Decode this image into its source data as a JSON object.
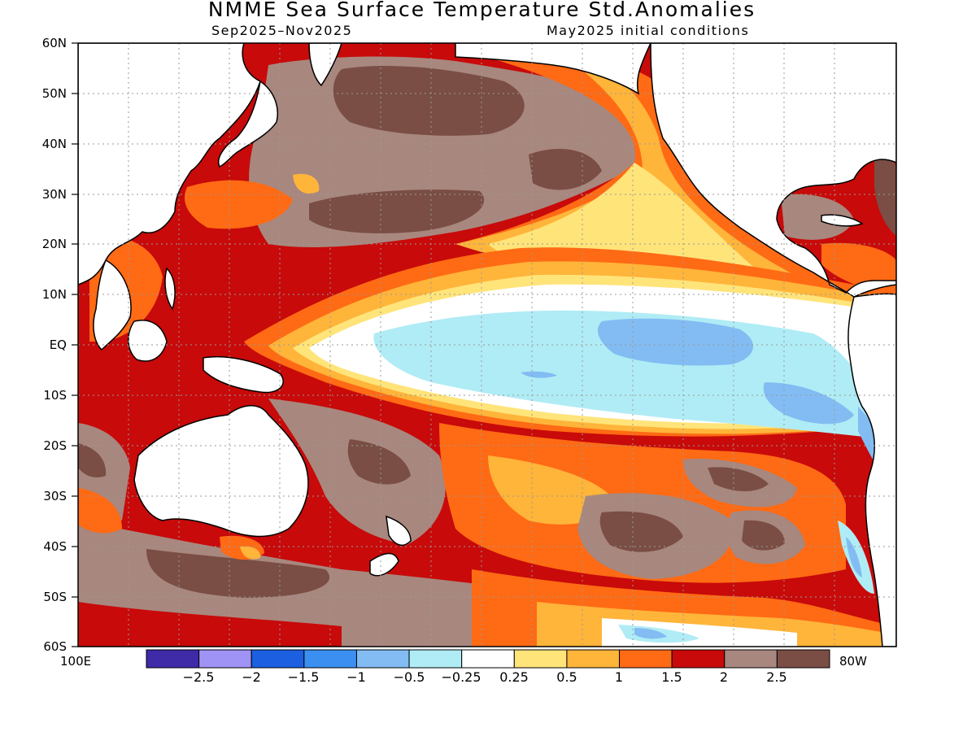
{
  "header": {
    "title": "NMME Sea Surface Temperature Std.Anomalies",
    "period": "Sep2025–Nov2025",
    "init": "May2025 initial conditions"
  },
  "lat_labels": [
    "60N",
    "50N",
    "40N",
    "30N",
    "20N",
    "10N",
    "EQ",
    "10S",
    "20S",
    "30S",
    "40S",
    "50S",
    "60S"
  ],
  "lon_labels": {
    "west": "100E",
    "east": "80W"
  },
  "colorbar": {
    "colors": [
      "#3f2aa8",
      "#9f93f5",
      "#1c5fe0",
      "#3b8ff0",
      "#82bcf3",
      "#b0ecf5",
      "#ffffff",
      "#ffe47a",
      "#ffb43a",
      "#ff6a14",
      "#c80a0a",
      "#a8877e",
      "#7a4e44"
    ],
    "labels": [
      "−2.5",
      "−2",
      "−1.5",
      "−1",
      "−0.5",
      "−0.25",
      "0.25",
      "0.5",
      "1",
      "1.5",
      "2",
      "2.5"
    ]
  },
  "chart_data": {
    "type": "heatmap",
    "title": "NMME Sea Surface Temperature Std.Anomalies",
    "subtitle_left": "Sep2025–Nov2025",
    "subtitle_right": "May2025 initial conditions",
    "lat_range": [
      "60S",
      "60N"
    ],
    "lon_range": [
      "100E",
      "80W"
    ],
    "levels": [
      -2.5,
      -2,
      -1.5,
      -1,
      -0.5,
      -0.25,
      0.25,
      0.5,
      1,
      1.5,
      2,
      2.5
    ],
    "grid": true
  }
}
